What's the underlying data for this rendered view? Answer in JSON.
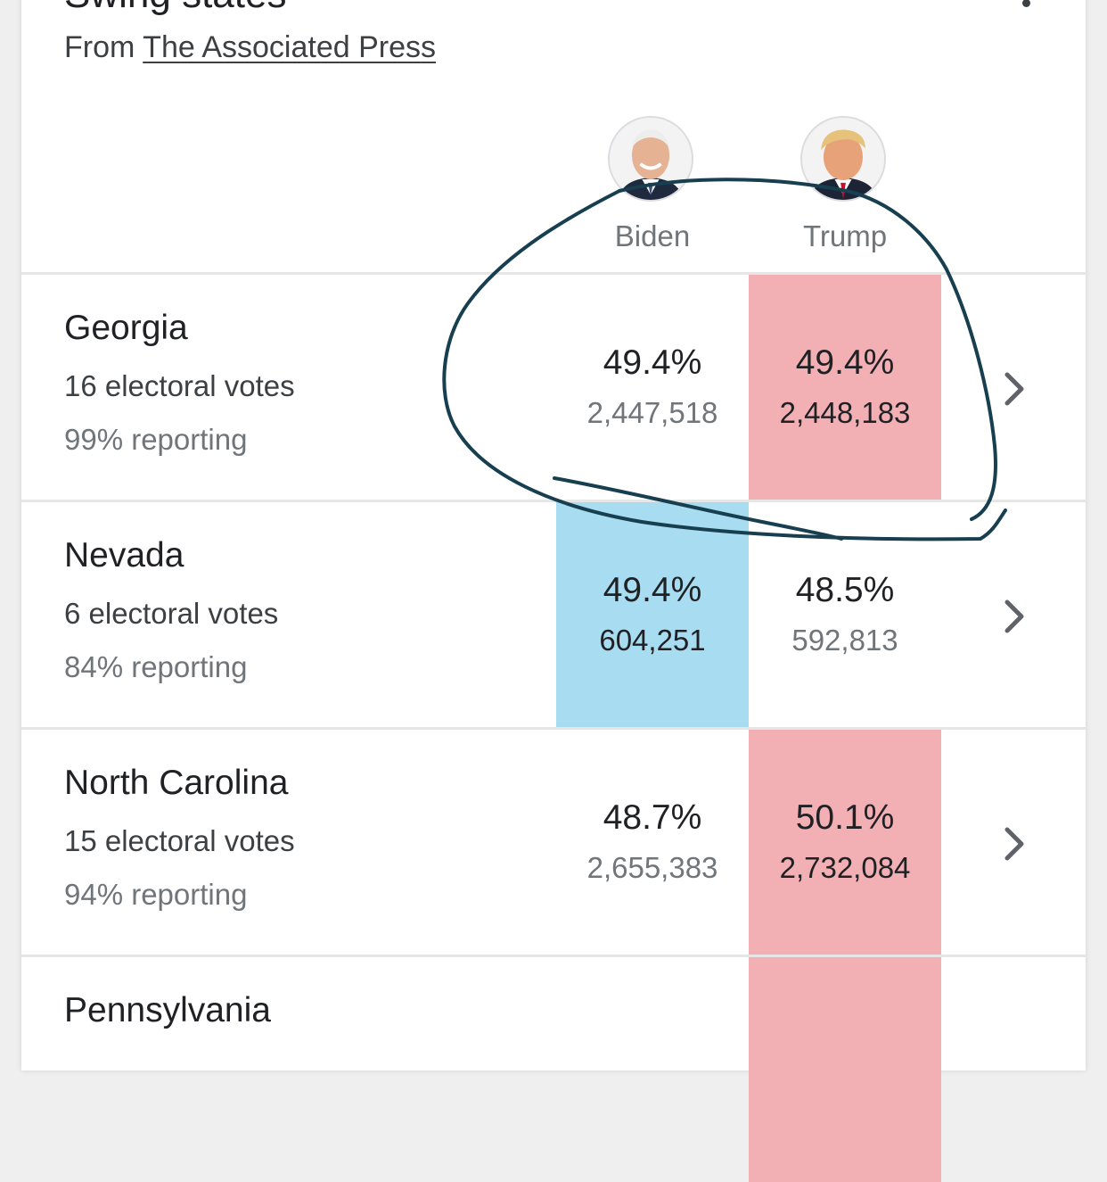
{
  "card": {
    "title": "Swing states",
    "source_prefix": "From",
    "source_link": "The Associated Press"
  },
  "candidates": [
    {
      "name": "Biden",
      "party_color": "#a8dcf1",
      "avatar_icon": "biden-avatar"
    },
    {
      "name": "Trump",
      "party_color": "#f2b0b4",
      "avatar_icon": "trump-avatar"
    }
  ],
  "states": [
    {
      "name": "Georgia",
      "electoral": "16 electoral votes",
      "reporting": "99% reporting",
      "biden": {
        "pct": "49.4%",
        "votes": "2,447,518"
      },
      "trump": {
        "pct": "49.4%",
        "votes": "2,448,183"
      },
      "leader": "trump"
    },
    {
      "name": "Nevada",
      "electoral": "6 electoral votes",
      "reporting": "84% reporting",
      "biden": {
        "pct": "49.4%",
        "votes": "604,251"
      },
      "trump": {
        "pct": "48.5%",
        "votes": "592,813"
      },
      "leader": "biden"
    },
    {
      "name": "North Carolina",
      "electoral": "15 electoral votes",
      "reporting": "94% reporting",
      "biden": {
        "pct": "48.7%",
        "votes": "2,655,383"
      },
      "trump": {
        "pct": "50.1%",
        "votes": "2,732,084"
      },
      "leader": "trump"
    },
    {
      "name": "Pennsylvania",
      "leader": "trump"
    }
  ],
  "icons": {
    "more": "more-vert-icon",
    "chevron": "chevron-right-icon"
  },
  "annotation_color": "#173f4f"
}
